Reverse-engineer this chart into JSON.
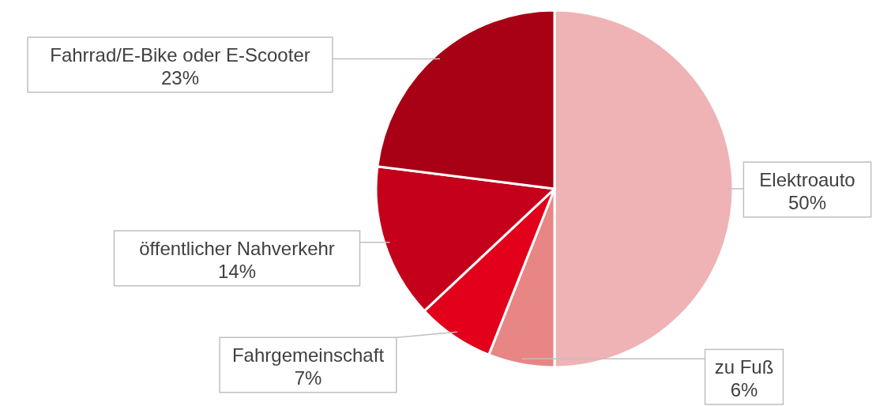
{
  "chart_data": {
    "type": "pie",
    "categories": [
      "Elektroauto",
      "zu Fuß",
      "Fahrgemeinschaft",
      "öffentlicher Nahverkehr",
      "Fahrrad/E-Bike oder E-Scooter"
    ],
    "values": [
      50,
      6,
      7,
      14,
      23
    ],
    "colors": [
      "#efb3b5",
      "#e88585",
      "#e2001a",
      "#c4001a",
      "#a80014"
    ],
    "value_labels": [
      "50%",
      "6%",
      "7%",
      "14%",
      "23%"
    ]
  }
}
